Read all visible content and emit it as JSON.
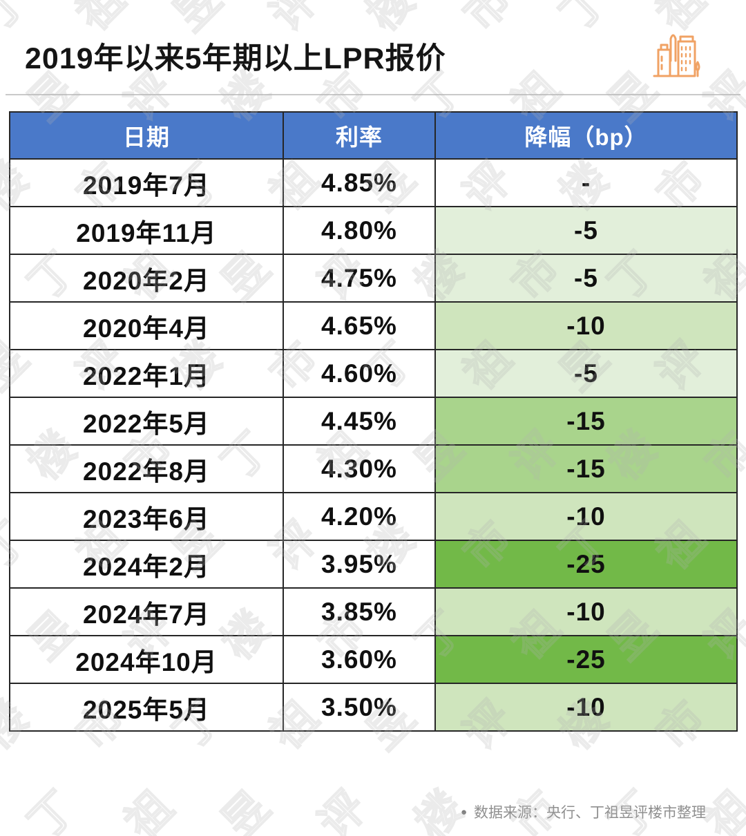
{
  "title": "2019年以来5年期以上LPR报价",
  "icon": {
    "name": "buildings-icon",
    "color": "#F0A264"
  },
  "colors": {
    "header_bg": "#4A79C9",
    "header_text": "#FFFFFF",
    "table_border": "#262626",
    "cut_none_bg": "#FFFFFF",
    "cut_5_bg": "#E2EFDA",
    "cut_10_bg": "#CFE5BD",
    "cut_15_bg": "#A9D48C",
    "cut_25_bg": "#72B948",
    "footer_text": "#8F8F8F",
    "divider": "#C9C9C9"
  },
  "chart_data": {
    "type": "table",
    "title": "2019年以来5年期以上LPR报价",
    "columns": [
      "日期",
      "利率",
      "降幅（bp）"
    ],
    "rows": [
      {
        "date": "2019年7月",
        "rate": "4.85%",
        "cut": "-",
        "cut_value": null,
        "cut_bg": "#FFFFFF"
      },
      {
        "date": "2019年11月",
        "rate": "4.80%",
        "cut": "-5",
        "cut_value": -5,
        "cut_bg": "#E2EFDA"
      },
      {
        "date": "2020年2月",
        "rate": "4.75%",
        "cut": "-5",
        "cut_value": -5,
        "cut_bg": "#E2EFDA"
      },
      {
        "date": "2020年4月",
        "rate": "4.65%",
        "cut": "-10",
        "cut_value": -10,
        "cut_bg": "#CFE5BD"
      },
      {
        "date": "2022年1月",
        "rate": "4.60%",
        "cut": "-5",
        "cut_value": -5,
        "cut_bg": "#E2EFDA"
      },
      {
        "date": "2022年5月",
        "rate": "4.45%",
        "cut": "-15",
        "cut_value": -15,
        "cut_bg": "#A9D48C"
      },
      {
        "date": "2022年8月",
        "rate": "4.30%",
        "cut": "-15",
        "cut_value": -15,
        "cut_bg": "#A9D48C"
      },
      {
        "date": "2023年6月",
        "rate": "4.20%",
        "cut": "-10",
        "cut_value": -10,
        "cut_bg": "#CFE5BD"
      },
      {
        "date": "2024年2月",
        "rate": "3.95%",
        "cut": "-25",
        "cut_value": -25,
        "cut_bg": "#72B948"
      },
      {
        "date": "2024年7月",
        "rate": "3.85%",
        "cut": "-10",
        "cut_value": -10,
        "cut_bg": "#CFE5BD"
      },
      {
        "date": "2024年10月",
        "rate": "3.60%",
        "cut": "-25",
        "cut_value": -25,
        "cut_bg": "#72B948"
      },
      {
        "date": "2025年5月",
        "rate": "3.50%",
        "cut": "-10",
        "cut_value": -10,
        "cut_bg": "#CFE5BD"
      }
    ]
  },
  "footer": {
    "bullet": "●",
    "source": "数据来源：央行、丁祖昱评楼市整理"
  },
  "watermark": {
    "text": "丁祖昱评楼市"
  }
}
